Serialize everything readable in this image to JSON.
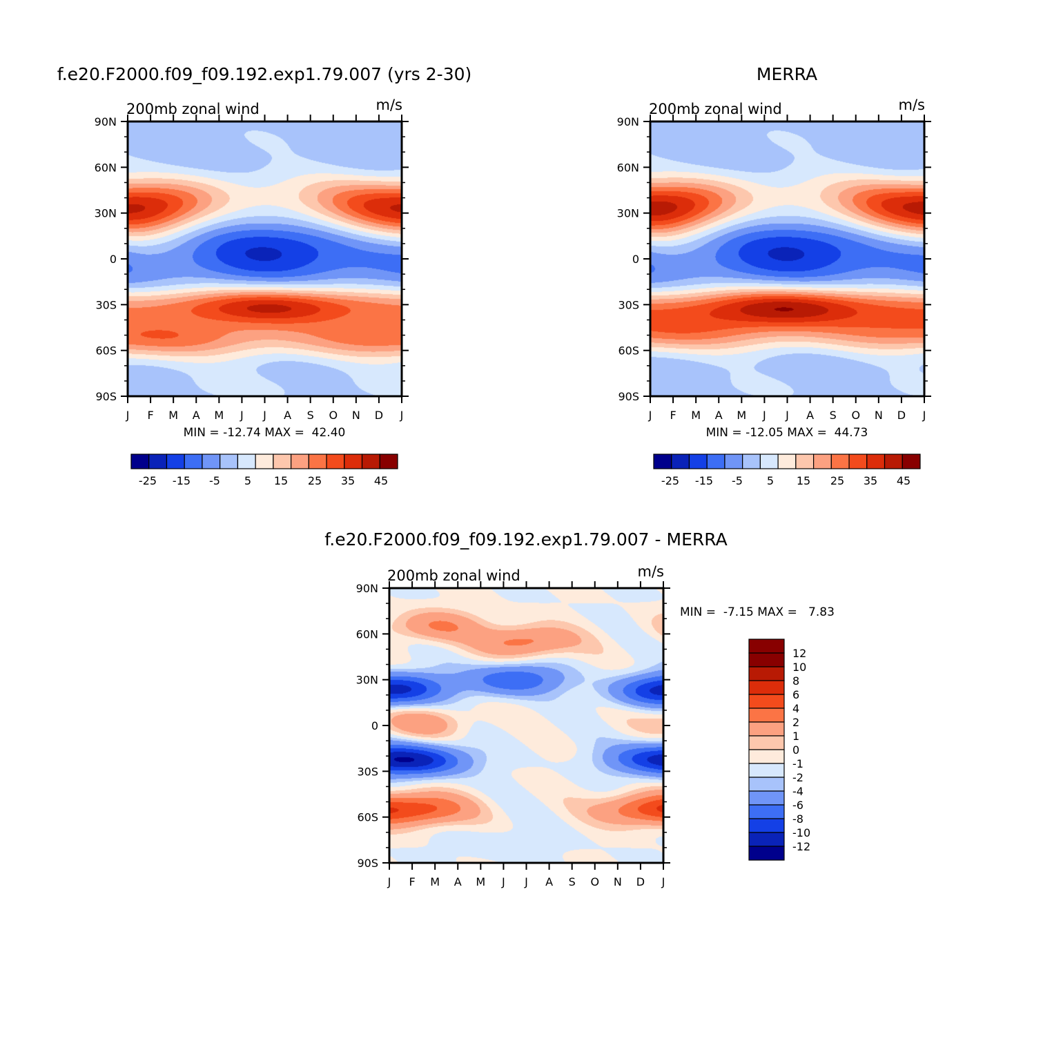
{
  "colors": {
    "abs_palette": [
      "#00008c",
      "#0a23b8",
      "#1440e6",
      "#3d6ef5",
      "#7095f7",
      "#a8c3fb",
      "#d7e8fd",
      "#feebdc",
      "#fdc7ad",
      "#fca181",
      "#fb7445",
      "#f34b1c",
      "#dc2d0a",
      "#b81a04",
      "#880000"
    ],
    "diff_palette": [
      "#00008c",
      "#0a23b8",
      "#1440e6",
      "#3d6ef5",
      "#7095f7",
      "#a8c3fb",
      "#d7e8fd",
      "#feebdc",
      "#fdc7ad",
      "#fca181",
      "#fb7445",
      "#f34b1c",
      "#dc2d0a",
      "#b81a04",
      "#880000"
    ]
  },
  "panels": {
    "model": {
      "title": "f.e20.F2000.f09_f09.192.exp1.79.007 (yrs 2-30)",
      "left_label": "200mb zonal wind",
      "right_label": "m/s",
      "stats": "MIN = -12.74 MAX =  42.40",
      "labelbar": [
        "-25",
        "-15",
        "-5",
        "5",
        "15",
        "25",
        "35",
        "45"
      ]
    },
    "obs": {
      "title": "MERRA",
      "left_label": "200mb zonal wind",
      "right_label": "m/s",
      "stats": "MIN = -12.05 MAX =  44.73",
      "labelbar": [
        "-25",
        "-15",
        "-5",
        "5",
        "15",
        "25",
        "35",
        "45"
      ]
    },
    "diff": {
      "title": "f.e20.F2000.f09_f09.192.exp1.79.007 - MERRA",
      "left_label": "200mb zonal wind",
      "right_label": "m/s",
      "stats": "MIN =  -7.15 MAX =   7.83",
      "labelbar": [
        "12",
        "10",
        "8",
        "6",
        "4",
        "2",
        "1",
        "0",
        "-1",
        "-2",
        "-4",
        "-6",
        "-8",
        "-10",
        "-12"
      ]
    }
  },
  "chart_data": [
    {
      "type": "heatmap",
      "title": "f.e20.F2000.f09_f09.192.exp1.79.007 (yrs 2-30)",
      "variable": "200mb zonal wind",
      "units": "m/s",
      "x_ticks": [
        "J",
        "F",
        "M",
        "A",
        "M",
        "J",
        "J",
        "A",
        "S",
        "O",
        "N",
        "D",
        "J"
      ],
      "y_ticks": [
        "90N",
        "60N",
        "30N",
        "0",
        "30S",
        "60S",
        "90S"
      ],
      "x_range": [
        0,
        12
      ],
      "y_range": [
        -90,
        90
      ],
      "levels": [
        -30,
        -25,
        -20,
        -15,
        -10,
        -5,
        0,
        5,
        10,
        15,
        20,
        25,
        30,
        35,
        40,
        45
      ],
      "min": -12.74,
      "max": 42.4,
      "features": [
        {
          "desc": "northern subtropical jet winter",
          "x": 0.6,
          "lat": 31,
          "value": 42
        },
        {
          "desc": "northern subtropical jet winter",
          "x": 11.6,
          "lat": 31,
          "value": 40
        },
        {
          "desc": "southern jet core",
          "x": 6.3,
          "lat": -30,
          "value": 40
        },
        {
          "desc": "southern midlatitude jet",
          "x": 0.5,
          "lat": -52,
          "value": 38
        },
        {
          "desc": "tropical easterlies",
          "x": 6.8,
          "lat": 8,
          "value": -12
        },
        {
          "desc": "high northern latitudes",
          "x": 6.0,
          "lat": 75,
          "value": 3
        },
        {
          "desc": "high southern latitudes",
          "x": 6.0,
          "lat": -82,
          "value": 5
        }
      ]
    },
    {
      "type": "heatmap",
      "title": "MERRA",
      "variable": "200mb zonal wind",
      "units": "m/s",
      "x_ticks": [
        "J",
        "F",
        "M",
        "A",
        "M",
        "J",
        "J",
        "A",
        "S",
        "O",
        "N",
        "D",
        "J"
      ],
      "y_ticks": [
        "90N",
        "60N",
        "30N",
        "0",
        "30S",
        "60S",
        "90S"
      ],
      "x_range": [
        0,
        12
      ],
      "y_range": [
        -90,
        90
      ],
      "levels": [
        -30,
        -25,
        -20,
        -15,
        -10,
        -5,
        0,
        5,
        10,
        15,
        20,
        25,
        30,
        35,
        40,
        45
      ],
      "min": -12.05,
      "max": 44.73,
      "features": [
        {
          "desc": "northern subtropical jet winter",
          "x": 0.6,
          "lat": 31,
          "value": 44
        },
        {
          "desc": "northern subtropical jet winter",
          "x": 11.6,
          "lat": 31,
          "value": 41
        },
        {
          "desc": "southern jet core",
          "x": 6.0,
          "lat": -30,
          "value": 41
        },
        {
          "desc": "southern midlatitude jet",
          "x": 0.5,
          "lat": -48,
          "value": 36
        },
        {
          "desc": "tropical easterlies",
          "x": 7.0,
          "lat": 8,
          "value": -12
        },
        {
          "desc": "high northern latitudes",
          "x": 6.0,
          "lat": 75,
          "value": 3
        },
        {
          "desc": "high southern latitudes",
          "x": 6.0,
          "lat": -82,
          "value": 4
        }
      ]
    },
    {
      "type": "heatmap",
      "title": "f.e20.F2000.f09_f09.192.exp1.79.007 - MERRA",
      "variable": "200mb zonal wind",
      "units": "m/s",
      "x_ticks": [
        "J",
        "F",
        "M",
        "A",
        "M",
        "J",
        "J",
        "A",
        "S",
        "O",
        "N",
        "D",
        "J"
      ],
      "y_ticks": [
        "90N",
        "60N",
        "30N",
        "0",
        "30S",
        "60S",
        "90S"
      ],
      "x_range": [
        0,
        12
      ],
      "y_range": [
        -90,
        90
      ],
      "levels": [
        -12,
        -10,
        -8,
        -6,
        -4,
        -2,
        -1,
        0,
        1,
        2,
        4,
        6,
        8,
        10,
        12
      ],
      "min": -7.15,
      "max": 7.83,
      "features": [
        {
          "desc": "northern high latitude positive",
          "x": 2.0,
          "lat": 65,
          "value": 4
        },
        {
          "desc": "northern midlatitude positive",
          "x": 6.0,
          "lat": 55,
          "value": 5
        },
        {
          "desc": "northern subtropics negative",
          "x": 5.5,
          "lat": 30,
          "value": -6
        },
        {
          "desc": "northern subtropics negative",
          "x": 0.8,
          "lat": 25,
          "value": -5
        },
        {
          "desc": "northern subtropics negative",
          "x": 11.6,
          "lat": 22,
          "value": -5
        },
        {
          "desc": "equatorial positive",
          "x": 1.5,
          "lat": 2,
          "value": 3
        },
        {
          "desc": "southern subtropics negative",
          "x": 1.5,
          "lat": -23,
          "value": -7
        },
        {
          "desc": "southern subtropics negative",
          "x": 11.5,
          "lat": -22,
          "value": -6
        },
        {
          "desc": "southern midlatitude positive",
          "x": 1.5,
          "lat": -55,
          "value": 6
        },
        {
          "desc": "southern midlatitude positive",
          "x": 11.2,
          "lat": -55,
          "value": 6
        },
        {
          "desc": "high southern latitudes weak negative",
          "x": 5.0,
          "lat": -78,
          "value": -1
        }
      ]
    }
  ]
}
